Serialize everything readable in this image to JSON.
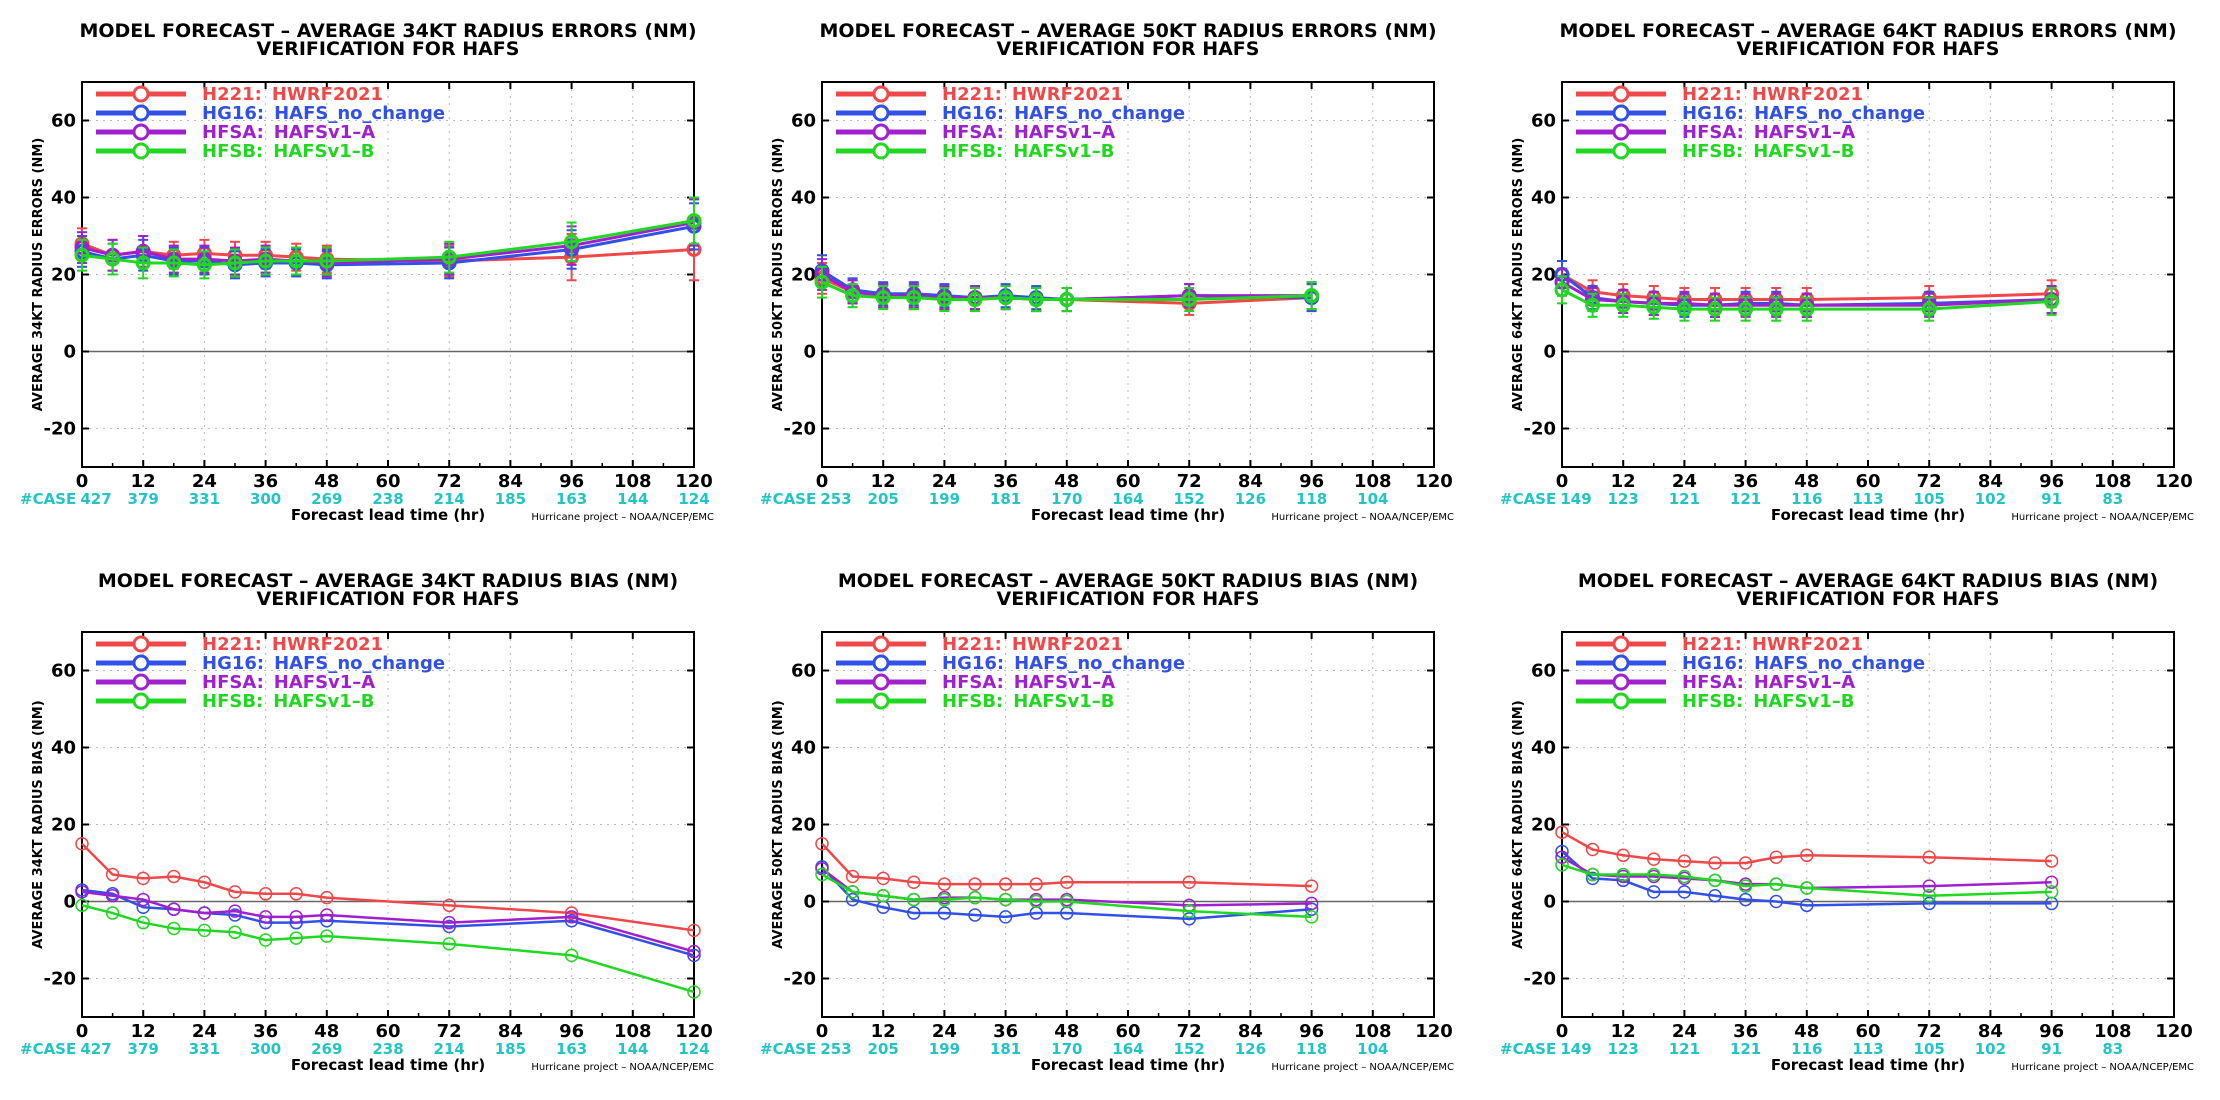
{
  "common": {
    "title_line2": "VERIFICATION FOR HAFS",
    "xlabel": "Forecast lead time (hr)",
    "credit": "Hurricane project – NOAA/NCEP/EMC",
    "case_label": "#CASE",
    "legend": [
      {
        "code": "H221:",
        "name": "HWRF2021",
        "color": "#f04848"
      },
      {
        "code": "HG16:",
        "name": "HAFS_no_change",
        "color": "#3050e8"
      },
      {
        "code": "HFSA:",
        "name": "HAFSv1–A",
        "color": "#a020d0"
      },
      {
        "code": "HFSB:",
        "name": "HAFSv1–B",
        "color": "#20d820"
      }
    ]
  },
  "chart_data": [
    {
      "type": "line",
      "title": "MODEL FORECAST – AVERAGE 34KT RADIUS ERRORS (NM)",
      "subtitle": "VERIFICATION FOR HAFS",
      "xlabel": "Forecast lead time (hr)",
      "ylabel": "AVERAGE 34KT RADIUS ERRORS (NM)",
      "xlim": [
        0,
        120
      ],
      "ylim": [
        -30,
        70
      ],
      "x_ticks": [
        0,
        12,
        24,
        36,
        48,
        60,
        72,
        84,
        96,
        108,
        120
      ],
      "y_ticks": [
        -20,
        0,
        20,
        40,
        60
      ],
      "grid": true,
      "legend_position": "top-left",
      "case_x": [
        0,
        12,
        24,
        36,
        48,
        60,
        72,
        84,
        96,
        108,
        120
      ],
      "case_counts": [
        "427",
        "379",
        "331",
        "300",
        "269",
        "238",
        "214",
        "185",
        "163",
        "144",
        "124"
      ],
      "error_bars": true,
      "x": [
        0,
        6,
        12,
        18,
        24,
        30,
        36,
        42,
        48,
        72,
        96,
        120
      ],
      "series": [
        {
          "name": "H221: HWRF2021",
          "color": "#f04848",
          "values": [
            28,
            25,
            26,
            25,
            25.5,
            25,
            25,
            24.5,
            24,
            23.5,
            24.5,
            26.5
          ],
          "err": [
            4,
            4,
            4,
            3.5,
            3.5,
            3.5,
            3.5,
            3.5,
            3.5,
            4,
            6,
            8
          ]
        },
        {
          "name": "HG16: HAFS_no_change",
          "color": "#3050e8",
          "values": [
            26,
            24,
            25,
            23.5,
            23.5,
            22.5,
            23,
            23,
            22.5,
            23,
            26.5,
            32.5
          ],
          "err": [
            4,
            4,
            4,
            3.5,
            3.5,
            3.5,
            3.5,
            3.5,
            3.5,
            4,
            5,
            6
          ]
        },
        {
          "name": "HFSA: HAFSv1–A",
          "color": "#a020d0",
          "values": [
            27,
            25,
            26,
            24,
            24,
            23.5,
            24,
            23.5,
            23,
            24,
            27.5,
            33.5
          ],
          "err": [
            4,
            4,
            4,
            3.5,
            3.5,
            3.5,
            3.5,
            3.5,
            3.5,
            4,
            5,
            6
          ]
        },
        {
          "name": "HFSB: HAFSv1–B",
          "color": "#20d820",
          "values": [
            25,
            24,
            23,
            23,
            22.5,
            23,
            23.5,
            23.5,
            23.5,
            24.5,
            28.5,
            34
          ],
          "err": [
            4,
            4,
            4,
            3.5,
            3.5,
            3.5,
            3.5,
            3.5,
            3.5,
            4,
            5,
            6
          ]
        }
      ]
    },
    {
      "type": "line",
      "title": "MODEL FORECAST – AVERAGE 50KT RADIUS ERRORS (NM)",
      "subtitle": "VERIFICATION FOR HAFS",
      "xlabel": "Forecast lead time (hr)",
      "ylabel": "AVERAGE 50KT RADIUS ERRORS (NM)",
      "xlim": [
        0,
        120
      ],
      "ylim": [
        -30,
        70
      ],
      "x_ticks": [
        0,
        12,
        24,
        36,
        48,
        60,
        72,
        84,
        96,
        108,
        120
      ],
      "y_ticks": [
        -20,
        0,
        20,
        40,
        60
      ],
      "grid": true,
      "legend_position": "top-left",
      "case_x": [
        0,
        12,
        24,
        36,
        48,
        60,
        72,
        84,
        96,
        108
      ],
      "case_counts": [
        "253",
        "205",
        "199",
        "181",
        "170",
        "164",
        "152",
        "126",
        "118",
        "104"
      ],
      "error_bars": true,
      "x": [
        0,
        6,
        12,
        18,
        24,
        30,
        36,
        42,
        48,
        72,
        96
      ],
      "series": [
        {
          "name": "H221: HWRF2021",
          "color": "#f04848",
          "values": [
            19,
            15.5,
            14.5,
            14,
            14,
            13.5,
            14,
            13.5,
            13.5,
            12.5,
            14
          ],
          "err": [
            4,
            3,
            3,
            3,
            3,
            3,
            3,
            3,
            3,
            3,
            3.5
          ]
        },
        {
          "name": "HG16: HAFS_no_change",
          "color": "#3050e8",
          "values": [
            21,
            16,
            15,
            15,
            14.5,
            14,
            14.5,
            14,
            13.5,
            14.5,
            14
          ],
          "err": [
            4,
            3,
            3,
            3,
            3,
            3,
            3,
            3,
            3,
            3,
            3.5
          ]
        },
        {
          "name": "HFSA: HAFSv1–A",
          "color": "#a020d0",
          "values": [
            20,
            15.5,
            14.5,
            14.5,
            14,
            14,
            14,
            13.5,
            13.5,
            14.5,
            14.5
          ],
          "err": [
            4,
            3,
            3,
            3,
            3,
            3,
            3,
            3,
            3,
            3,
            3.5
          ]
        },
        {
          "name": "HFSB: HAFSv1–B",
          "color": "#20d820",
          "values": [
            18,
            14.5,
            14,
            14,
            13.5,
            13.5,
            14,
            13.5,
            13.5,
            13.5,
            14.5
          ],
          "err": [
            4,
            3,
            3,
            3,
            3,
            3,
            3,
            3,
            3,
            3,
            3.5
          ]
        }
      ]
    },
    {
      "type": "line",
      "title": "MODEL FORECAST – AVERAGE 64KT RADIUS ERRORS (NM)",
      "subtitle": "VERIFICATION FOR HAFS",
      "xlabel": "Forecast lead time (hr)",
      "ylabel": "AVERAGE 64KT RADIUS ERRORS (NM)",
      "xlim": [
        0,
        120
      ],
      "ylim": [
        -30,
        70
      ],
      "x_ticks": [
        0,
        12,
        24,
        36,
        48,
        60,
        72,
        84,
        96,
        108,
        120
      ],
      "y_ticks": [
        -20,
        0,
        20,
        40,
        60
      ],
      "grid": true,
      "legend_position": "top-left",
      "case_x": [
        0,
        12,
        24,
        36,
        48,
        60,
        72,
        84,
        96,
        108
      ],
      "case_counts": [
        "149",
        "123",
        "121",
        "121",
        "116",
        "113",
        "105",
        "102",
        "91",
        "83"
      ],
      "error_bars": true,
      "x": [
        0,
        6,
        12,
        18,
        24,
        30,
        36,
        42,
        48,
        72,
        96
      ],
      "series": [
        {
          "name": "H221: HWRF2021",
          "color": "#f04848",
          "values": [
            20,
            15.5,
            14.5,
            14,
            13.5,
            13.5,
            13.5,
            13.5,
            13.5,
            14,
            15
          ],
          "err": [
            3.5,
            3,
            3,
            3,
            3,
            3,
            3,
            3,
            3,
            3,
            3.5
          ]
        },
        {
          "name": "HG16: HAFS_no_change",
          "color": "#3050e8",
          "values": [
            20,
            14,
            13,
            12.5,
            12,
            12,
            12.5,
            12.5,
            12,
            12.5,
            13.5
          ],
          "err": [
            3.5,
            3,
            3,
            3,
            3,
            3,
            3,
            3,
            3,
            3,
            3.5
          ]
        },
        {
          "name": "HFSA: HAFSv1–A",
          "color": "#a020d0",
          "values": [
            18,
            13.5,
            13,
            12.5,
            12.5,
            12,
            12,
            12,
            12,
            12,
            13.5
          ],
          "err": [
            3.5,
            3,
            3,
            3,
            3,
            3,
            3,
            3,
            3,
            3,
            3.5
          ]
        },
        {
          "name": "HFSB: HAFSv1–B",
          "color": "#20d820",
          "values": [
            16,
            12,
            12,
            11.5,
            11,
            11,
            11,
            11,
            11,
            11,
            13
          ],
          "err": [
            3.5,
            3,
            3,
            3,
            3,
            3,
            3,
            3,
            3,
            3,
            3.5
          ]
        }
      ]
    },
    {
      "type": "line",
      "title": "MODEL FORECAST – AVERAGE 34KT RADIUS BIAS (NM)",
      "subtitle": "VERIFICATION FOR HAFS",
      "xlabel": "Forecast lead time (hr)",
      "ylabel": "AVERAGE 34KT RADIUS BIAS (NM)",
      "xlim": [
        0,
        120
      ],
      "ylim": [
        -30,
        70
      ],
      "x_ticks": [
        0,
        12,
        24,
        36,
        48,
        60,
        72,
        84,
        96,
        108,
        120
      ],
      "y_ticks": [
        -20,
        0,
        20,
        40,
        60
      ],
      "grid": true,
      "legend_position": "top-left",
      "case_x": [
        0,
        12,
        24,
        36,
        48,
        60,
        72,
        84,
        96,
        108,
        120
      ],
      "case_counts": [
        "427",
        "379",
        "331",
        "300",
        "269",
        "238",
        "214",
        "185",
        "163",
        "144",
        "124"
      ],
      "error_bars": false,
      "x": [
        0,
        6,
        12,
        18,
        24,
        30,
        36,
        42,
        48,
        72,
        96,
        120
      ],
      "series": [
        {
          "name": "H221: HWRF2021",
          "color": "#f04848",
          "values": [
            15,
            7,
            6,
            6.5,
            5,
            2.5,
            2,
            2,
            1,
            -1,
            -3,
            -7.5
          ]
        },
        {
          "name": "HG16: HAFS_no_change",
          "color": "#3050e8",
          "values": [
            3,
            2,
            -1.5,
            -2,
            -3,
            -3.5,
            -5.5,
            -5.5,
            -5,
            -6.5,
            -5,
            -14
          ]
        },
        {
          "name": "HFSA: HAFSv1–A",
          "color": "#a020d0",
          "values": [
            2.5,
            1.5,
            0.5,
            -2,
            -3,
            -2.5,
            -4,
            -4,
            -3.5,
            -5.5,
            -4,
            -13
          ]
        },
        {
          "name": "HFSB: HAFSv1–B",
          "color": "#20d820",
          "values": [
            -1,
            -3,
            -5.5,
            -7,
            -7.5,
            -8,
            -10,
            -9.5,
            -9,
            -11,
            -14,
            -23.5
          ]
        }
      ]
    },
    {
      "type": "line",
      "title": "MODEL FORECAST – AVERAGE 50KT RADIUS BIAS (NM)",
      "subtitle": "VERIFICATION FOR HAFS",
      "xlabel": "Forecast lead time (hr)",
      "ylabel": "AVERAGE 50KT RADIUS BIAS (NM)",
      "xlim": [
        0,
        120
      ],
      "ylim": [
        -30,
        70
      ],
      "x_ticks": [
        0,
        12,
        24,
        36,
        48,
        60,
        72,
        84,
        96,
        108,
        120
      ],
      "y_ticks": [
        -20,
        0,
        20,
        40,
        60
      ],
      "grid": true,
      "legend_position": "top-left",
      "case_x": [
        0,
        12,
        24,
        36,
        48,
        60,
        72,
        84,
        96,
        108
      ],
      "case_counts": [
        "253",
        "205",
        "199",
        "181",
        "170",
        "164",
        "152",
        "126",
        "118",
        "104"
      ],
      "error_bars": false,
      "x": [
        0,
        6,
        12,
        18,
        24,
        30,
        36,
        42,
        48,
        72,
        96
      ],
      "series": [
        {
          "name": "H221: HWRF2021",
          "color": "#f04848",
          "values": [
            15,
            6.5,
            6,
            5,
            4.5,
            4.5,
            4.5,
            4.5,
            5,
            5,
            4
          ]
        },
        {
          "name": "HG16: HAFS_no_change",
          "color": "#3050e8",
          "values": [
            9,
            0.5,
            -1.5,
            -3,
            -3,
            -3.5,
            -4,
            -3,
            -3,
            -4.5,
            -2
          ]
        },
        {
          "name": "HFSA: HAFSv1–A",
          "color": "#a020d0",
          "values": [
            8.5,
            2.5,
            1.5,
            0.5,
            1,
            1,
            0.5,
            0.5,
            0.5,
            -1,
            -0.5
          ]
        },
        {
          "name": "HFSB: HAFSv1–B",
          "color": "#20d820",
          "values": [
            7,
            2.5,
            1.5,
            0.5,
            0.5,
            1,
            0.5,
            0,
            0,
            -2.5,
            -4
          ]
        }
      ]
    },
    {
      "type": "line",
      "title": "MODEL FORECAST – AVERAGE 64KT RADIUS BIAS (NM)",
      "subtitle": "VERIFICATION FOR HAFS",
      "xlabel": "Forecast lead time (hr)",
      "ylabel": "AVERAGE 64KT RADIUS BIAS (NM)",
      "xlim": [
        0,
        120
      ],
      "ylim": [
        -30,
        70
      ],
      "x_ticks": [
        0,
        12,
        24,
        36,
        48,
        60,
        72,
        84,
        96,
        108,
        120
      ],
      "y_ticks": [
        -20,
        0,
        20,
        40,
        60
      ],
      "grid": true,
      "legend_position": "top-left",
      "case_x": [
        0,
        12,
        24,
        36,
        48,
        60,
        72,
        84,
        96,
        108
      ],
      "case_counts": [
        "149",
        "123",
        "121",
        "121",
        "116",
        "113",
        "105",
        "102",
        "91",
        "83"
      ],
      "error_bars": false,
      "x": [
        0,
        6,
        12,
        18,
        24,
        30,
        36,
        42,
        48,
        72,
        96
      ],
      "series": [
        {
          "name": "H221: HWRF2021",
          "color": "#f04848",
          "values": [
            18,
            13.5,
            12,
            11,
            10.5,
            10,
            10,
            11.5,
            12,
            11.5,
            10.5
          ]
        },
        {
          "name": "HG16: HAFS_no_change",
          "color": "#3050e8",
          "values": [
            13,
            6,
            5.5,
            2.5,
            2.5,
            1.5,
            0.5,
            0,
            -1,
            -0.5,
            -0.5
          ]
        },
        {
          "name": "HFSA: HAFSv1–A",
          "color": "#a020d0",
          "values": [
            11.5,
            7,
            6.5,
            6.5,
            6,
            5.5,
            4.5,
            4.5,
            3.5,
            4,
            5
          ]
        },
        {
          "name": "HFSB: HAFSv1–B",
          "color": "#20d820",
          "values": [
            9.5,
            7,
            7,
            7,
            6.5,
            5.5,
            4,
            4.5,
            3.5,
            1.5,
            2.5
          ]
        }
      ]
    }
  ]
}
